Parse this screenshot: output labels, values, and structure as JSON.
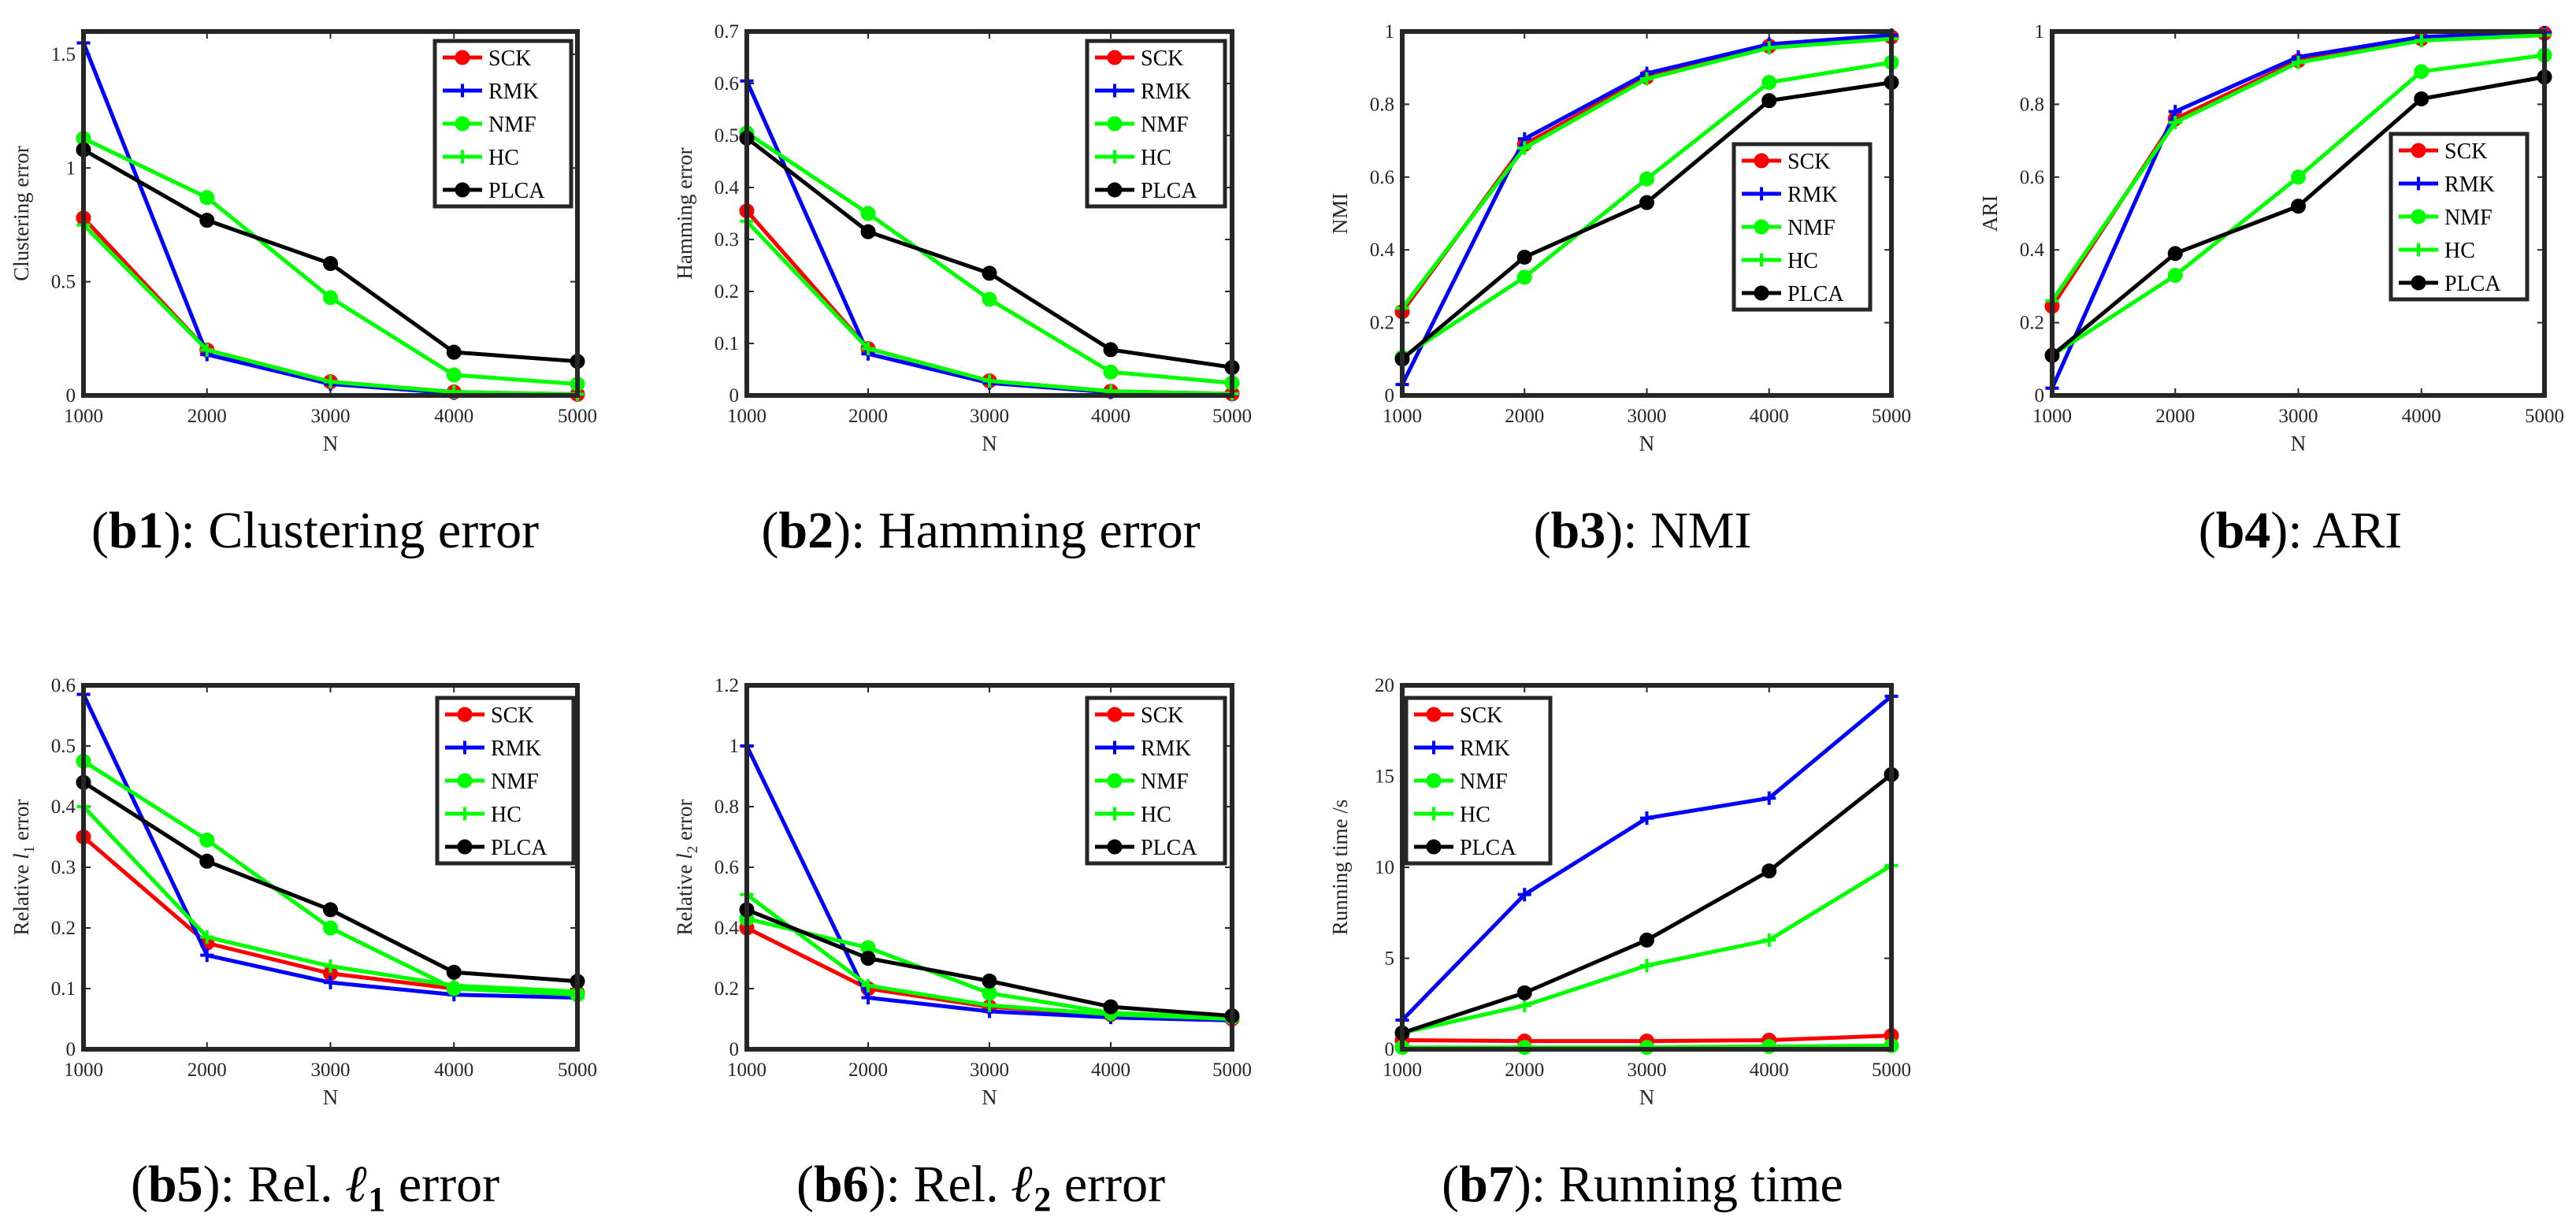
{
  "chart_data": [
    {
      "id": "b1",
      "type": "line",
      "caption_id": "b1",
      "caption_text": "Clustering error",
      "xlabel": "N",
      "ylabel": "Clustering error",
      "x": [
        1000,
        2000,
        3000,
        4000,
        5000
      ],
      "xticks": [
        "1000",
        "2000",
        "3000",
        "4000",
        "5000"
      ],
      "ylim": [
        0,
        1.6
      ],
      "yticks": [
        0,
        0.5,
        1,
        1.5
      ],
      "yticklabels": [
        "0",
        "0.5",
        "1",
        "1.5"
      ],
      "legend": "top-right",
      "series": [
        {
          "name": "SCK",
          "values": [
            0.78,
            0.2,
            0.06,
            0.015,
            0.005
          ]
        },
        {
          "name": "RMK",
          "values": [
            1.55,
            0.18,
            0.05,
            0.01,
            0.003
          ]
        },
        {
          "name": "NMF",
          "values": [
            1.13,
            0.87,
            0.43,
            0.09,
            0.05
          ]
        },
        {
          "name": "HC",
          "values": [
            0.75,
            0.2,
            0.06,
            0.015,
            0.005
          ]
        },
        {
          "name": "PLCA",
          "values": [
            1.08,
            0.77,
            0.58,
            0.19,
            0.15
          ]
        }
      ]
    },
    {
      "id": "b2",
      "type": "line",
      "caption_id": "b2",
      "caption_text": "Hamming error",
      "xlabel": "N",
      "ylabel": "Hamming error",
      "x": [
        1000,
        2000,
        3000,
        4000,
        5000
      ],
      "xticks": [
        "1000",
        "2000",
        "3000",
        "4000",
        "5000"
      ],
      "ylim": [
        0,
        0.7
      ],
      "yticks": [
        0,
        0.1,
        0.2,
        0.3,
        0.4,
        0.5,
        0.6,
        0.7
      ],
      "yticklabels": [
        "0",
        "0.1",
        "0.2",
        "0.3",
        "0.4",
        "0.5",
        "0.6",
        "0.7"
      ],
      "legend": "top-right",
      "series": [
        {
          "name": "SCK",
          "values": [
            0.355,
            0.09,
            0.028,
            0.008,
            0.003
          ]
        },
        {
          "name": "RMK",
          "values": [
            0.605,
            0.08,
            0.024,
            0.006,
            0.002
          ]
        },
        {
          "name": "NMF",
          "values": [
            0.505,
            0.35,
            0.185,
            0.045,
            0.024
          ]
        },
        {
          "name": "HC",
          "values": [
            0.335,
            0.09,
            0.028,
            0.008,
            0.003
          ]
        },
        {
          "name": "PLCA",
          "values": [
            0.495,
            0.315,
            0.235,
            0.088,
            0.054
          ]
        }
      ]
    },
    {
      "id": "b3",
      "type": "line",
      "caption_id": "b3",
      "caption_text": "NMI",
      "xlabel": "N",
      "ylabel": "NMI",
      "x": [
        1000,
        2000,
        3000,
        4000,
        5000
      ],
      "xticks": [
        "1000",
        "2000",
        "3000",
        "4000",
        "5000"
      ],
      "ylim": [
        0,
        1
      ],
      "yticks": [
        0,
        0.2,
        0.4,
        0.6,
        0.8,
        1
      ],
      "yticklabels": [
        "0",
        "0.2",
        "0.4",
        "0.6",
        "0.8",
        "1"
      ],
      "legend": "center-right",
      "series": [
        {
          "name": "SCK",
          "values": [
            0.23,
            0.69,
            0.875,
            0.96,
            0.985
          ]
        },
        {
          "name": "RMK",
          "values": [
            0.03,
            0.705,
            0.885,
            0.965,
            0.99
          ]
        },
        {
          "name": "NMF",
          "values": [
            0.105,
            0.325,
            0.595,
            0.86,
            0.915
          ]
        },
        {
          "name": "HC",
          "values": [
            0.24,
            0.68,
            0.87,
            0.955,
            0.98
          ]
        },
        {
          "name": "PLCA",
          "values": [
            0.1,
            0.38,
            0.53,
            0.81,
            0.86
          ]
        }
      ]
    },
    {
      "id": "b4",
      "type": "line",
      "caption_id": "b4",
      "caption_text": "ARI",
      "xlabel": "N",
      "ylabel": "ARI",
      "x": [
        1000,
        2000,
        3000,
        4000,
        5000
      ],
      "xticks": [
        "1000",
        "2000",
        "3000",
        "4000",
        "5000"
      ],
      "ylim": [
        0,
        1
      ],
      "yticks": [
        0,
        0.2,
        0.4,
        0.6,
        0.8,
        1
      ],
      "yticklabels": [
        "0",
        "0.2",
        "0.4",
        "0.6",
        "0.8",
        "1"
      ],
      "legend": "center-right",
      "series": [
        {
          "name": "SCK",
          "values": [
            0.245,
            0.76,
            0.92,
            0.98,
            0.995
          ]
        },
        {
          "name": "RMK",
          "values": [
            0.02,
            0.78,
            0.93,
            0.985,
            0.997
          ]
        },
        {
          "name": "NMF",
          "values": [
            0.11,
            0.33,
            0.6,
            0.89,
            0.935
          ]
        },
        {
          "name": "HC",
          "values": [
            0.26,
            0.75,
            0.915,
            0.975,
            0.99
          ]
        },
        {
          "name": "PLCA",
          "values": [
            0.11,
            0.39,
            0.52,
            0.815,
            0.875
          ]
        }
      ]
    },
    {
      "id": "b5",
      "type": "line",
      "caption_id": "b5",
      "caption_text": "Rel. ℓ",
      "caption_sub": "1",
      "caption_tail": " error",
      "xlabel": "N",
      "ylabel": "Relative l",
      "ylabel_sub": "1",
      "ylabel_tail": " error",
      "x": [
        1000,
        2000,
        3000,
        4000,
        5000
      ],
      "xticks": [
        "1000",
        "2000",
        "3000",
        "4000",
        "5000"
      ],
      "ylim": [
        0,
        0.6
      ],
      "yticks": [
        0,
        0.1,
        0.2,
        0.3,
        0.4,
        0.5,
        0.6
      ],
      "yticklabels": [
        "0",
        "0.1",
        "0.2",
        "0.3",
        "0.4",
        "0.5",
        "0.6"
      ],
      "legend": "top-right",
      "series": [
        {
          "name": "SCK",
          "values": [
            0.35,
            0.175,
            0.125,
            0.1,
            0.093
          ]
        },
        {
          "name": "RMK",
          "values": [
            0.585,
            0.155,
            0.11,
            0.09,
            0.085
          ]
        },
        {
          "name": "NMF",
          "values": [
            0.475,
            0.345,
            0.2,
            0.1,
            0.09
          ]
        },
        {
          "name": "HC",
          "values": [
            0.4,
            0.185,
            0.137,
            0.105,
            0.095
          ]
        },
        {
          "name": "PLCA",
          "values": [
            0.44,
            0.31,
            0.23,
            0.127,
            0.112
          ]
        }
      ]
    },
    {
      "id": "b6",
      "type": "line",
      "caption_id": "b6",
      "caption_text": "Rel. ℓ",
      "caption_sub": "2",
      "caption_tail": " error",
      "xlabel": "N",
      "ylabel": "Relative l",
      "ylabel_sub": "2",
      "ylabel_tail": " error",
      "x": [
        1000,
        2000,
        3000,
        4000,
        5000
      ],
      "xticks": [
        "1000",
        "2000",
        "3000",
        "4000",
        "5000"
      ],
      "ylim": [
        0,
        1.2
      ],
      "yticks": [
        0,
        0.2,
        0.4,
        0.6,
        0.8,
        1,
        1.2
      ],
      "yticklabels": [
        "0",
        "0.2",
        "0.4",
        "0.6",
        "0.8",
        "1",
        "1.2"
      ],
      "legend": "top-right",
      "series": [
        {
          "name": "SCK",
          "values": [
            0.4,
            0.2,
            0.14,
            0.115,
            0.1
          ]
        },
        {
          "name": "RMK",
          "values": [
            1.0,
            0.17,
            0.125,
            0.105,
            0.095
          ]
        },
        {
          "name": "NMF",
          "values": [
            0.43,
            0.335,
            0.185,
            0.12,
            0.105
          ]
        },
        {
          "name": "HC",
          "values": [
            0.51,
            0.21,
            0.145,
            0.115,
            0.1
          ]
        },
        {
          "name": "PLCA",
          "values": [
            0.46,
            0.3,
            0.225,
            0.14,
            0.11
          ]
        }
      ]
    },
    {
      "id": "b7",
      "type": "line",
      "caption_id": "b7",
      "caption_text": "Running time",
      "xlabel": "N",
      "ylabel": "Running time /s",
      "x": [
        1000,
        2000,
        3000,
        4000,
        5000
      ],
      "xticks": [
        "1000",
        "2000",
        "3000",
        "4000",
        "5000"
      ],
      "ylim": [
        0,
        20
      ],
      "yticks": [
        0,
        5,
        10,
        15,
        20
      ],
      "yticklabels": [
        "0",
        "5",
        "10",
        "15",
        "20"
      ],
      "legend": "top-left",
      "series": [
        {
          "name": "SCK",
          "values": [
            0.5,
            0.45,
            0.45,
            0.5,
            0.75
          ]
        },
        {
          "name": "RMK",
          "values": [
            1.6,
            8.5,
            12.7,
            13.8,
            19.4
          ]
        },
        {
          "name": "NMF",
          "values": [
            0.1,
            0.1,
            0.1,
            0.15,
            0.2
          ]
        },
        {
          "name": "HC",
          "values": [
            0.9,
            2.4,
            4.6,
            6.0,
            10.1
          ]
        },
        {
          "name": "PLCA",
          "values": [
            0.9,
            3.1,
            6.0,
            9.8,
            15.1
          ]
        }
      ]
    }
  ],
  "series_styles": {
    "SCK": {
      "color": "#ff0000",
      "marker": "circle"
    },
    "RMK": {
      "color": "#0000ff",
      "marker": "plus"
    },
    "NMF": {
      "color": "#00ff00",
      "marker": "circle"
    },
    "HC": {
      "color": "#00ff00",
      "marker": "plus"
    },
    "PLCA": {
      "color": "#000000",
      "marker": "circle"
    }
  }
}
